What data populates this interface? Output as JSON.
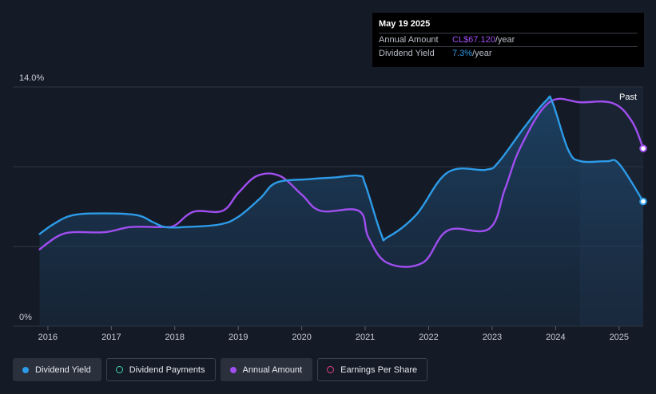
{
  "chart_data": {
    "type": "line",
    "y_tick_labels": [
      "14.0%",
      "0%"
    ],
    "ylim": [
      0,
      14.0
    ],
    "xlim": [
      2015.85,
      2025.38
    ],
    "x_tick_labels": [
      "2016",
      "2017",
      "2018",
      "2019",
      "2020",
      "2021",
      "2022",
      "2023",
      "2024",
      "2025"
    ],
    "x_ticks": [
      2016,
      2017,
      2018,
      2019,
      2020,
      2021,
      2022,
      2023,
      2024,
      2025
    ],
    "past_label": "Past",
    "past_start": 2024.38,
    "series": [
      {
        "name": "Dividend Yield",
        "color": "#2d9be8",
        "points": [
          [
            2015.87,
            5.4
          ],
          [
            2016.1,
            6.0
          ],
          [
            2016.4,
            6.5
          ],
          [
            2016.9,
            6.6
          ],
          [
            2017.4,
            6.5
          ],
          [
            2017.65,
            6.1
          ],
          [
            2017.85,
            5.8
          ],
          [
            2018.15,
            5.8
          ],
          [
            2018.7,
            5.95
          ],
          [
            2019.0,
            6.4
          ],
          [
            2019.35,
            7.5
          ],
          [
            2019.6,
            8.4
          ],
          [
            2020.1,
            8.6
          ],
          [
            2020.5,
            8.7
          ],
          [
            2020.9,
            8.8
          ],
          [
            2021.0,
            8.3
          ],
          [
            2021.25,
            5.4
          ],
          [
            2021.35,
            5.2
          ],
          [
            2021.8,
            6.5
          ],
          [
            2022.3,
            9.0
          ],
          [
            2022.9,
            9.15
          ],
          [
            2023.1,
            9.6
          ],
          [
            2023.5,
            11.6
          ],
          [
            2023.85,
            13.2
          ],
          [
            2023.95,
            13.1
          ],
          [
            2024.2,
            10.3
          ],
          [
            2024.4,
            9.65
          ],
          [
            2024.8,
            9.65
          ],
          [
            2025.0,
            9.5
          ],
          [
            2025.38,
            7.3
          ]
        ],
        "end_marker_value": 7.3
      },
      {
        "name": "Annual Amount",
        "color": "#a04ef0",
        "points": [
          [
            2015.87,
            4.5
          ],
          [
            2016.15,
            5.25
          ],
          [
            2016.4,
            5.5
          ],
          [
            2016.9,
            5.5
          ],
          [
            2017.3,
            5.8
          ],
          [
            2017.8,
            5.8
          ],
          [
            2018.0,
            5.9
          ],
          [
            2018.3,
            6.7
          ],
          [
            2018.75,
            6.75
          ],
          [
            2019.0,
            7.8
          ],
          [
            2019.3,
            8.8
          ],
          [
            2019.65,
            8.8
          ],
          [
            2020.0,
            7.7
          ],
          [
            2020.3,
            6.75
          ],
          [
            2020.9,
            6.75
          ],
          [
            2021.05,
            5.2
          ],
          [
            2021.35,
            3.7
          ],
          [
            2021.9,
            3.7
          ],
          [
            2022.3,
            5.6
          ],
          [
            2022.95,
            5.7
          ],
          [
            2023.2,
            8.0
          ],
          [
            2023.45,
            10.5
          ],
          [
            2023.9,
            13.1
          ],
          [
            2024.4,
            13.1
          ],
          [
            2024.9,
            13.05
          ],
          [
            2025.2,
            12.0
          ],
          [
            2025.38,
            10.4
          ]
        ],
        "end_marker_value": 10.4
      }
    ]
  },
  "tooltip": {
    "date": "May 19 2025",
    "rows": [
      {
        "label": "Annual Amount",
        "value": "CL$67.120",
        "unit": "/year",
        "color": "#a04ef0"
      },
      {
        "label": "Dividend Yield",
        "value": "7.3%",
        "unit": "/year",
        "color": "#2d9be8"
      }
    ]
  },
  "legend": [
    {
      "label": "Dividend Yield",
      "color": "#2d9be8",
      "style": "filled",
      "active": true
    },
    {
      "label": "Dividend Payments",
      "color": "#3fd0b8",
      "style": "hollow",
      "active": false
    },
    {
      "label": "Annual Amount",
      "color": "#a04ef0",
      "style": "filled",
      "active": true
    },
    {
      "label": "Earnings Per Share",
      "color": "#e0408c",
      "style": "hollow",
      "active": false
    }
  ]
}
